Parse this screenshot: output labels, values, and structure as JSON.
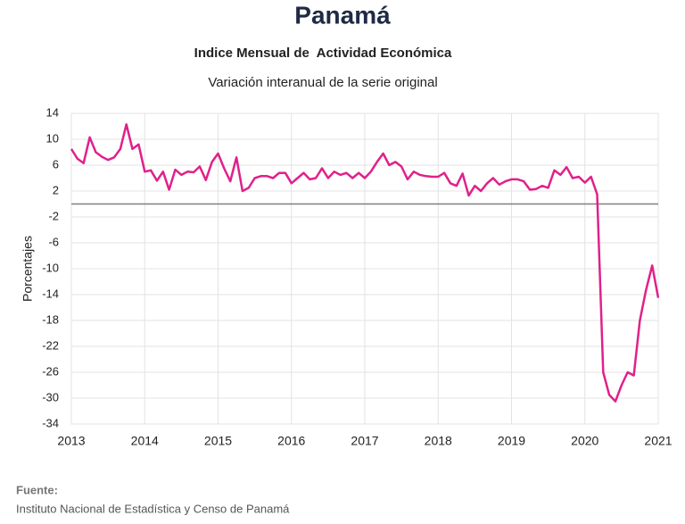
{
  "chart_data": {
    "type": "line",
    "title": "Panamá",
    "subtitle": "Indice Mensual de  Actividad Económica",
    "description": "Variación interanual de la serie original",
    "ylabel": "Porcentajes",
    "source_label": "Fuente:",
    "source": "Instituto Nacional de Estadística y Censo de Panamá",
    "x": [
      2013,
      2013.083,
      2013.167,
      2013.25,
      2013.333,
      2013.417,
      2013.5,
      2013.583,
      2013.667,
      2013.75,
      2013.833,
      2013.917,
      2014,
      2014.083,
      2014.167,
      2014.25,
      2014.333,
      2014.417,
      2014.5,
      2014.583,
      2014.667,
      2014.75,
      2014.833,
      2014.917,
      2015,
      2015.083,
      2015.167,
      2015.25,
      2015.333,
      2015.417,
      2015.5,
      2015.583,
      2015.667,
      2015.75,
      2015.833,
      2015.917,
      2016,
      2016.083,
      2016.167,
      2016.25,
      2016.333,
      2016.417,
      2016.5,
      2016.583,
      2016.667,
      2016.75,
      2016.833,
      2016.917,
      2017,
      2017.083,
      2017.167,
      2017.25,
      2017.333,
      2017.417,
      2017.5,
      2017.583,
      2017.667,
      2017.75,
      2017.833,
      2017.917,
      2018,
      2018.083,
      2018.167,
      2018.25,
      2018.333,
      2018.417,
      2018.5,
      2018.583,
      2018.667,
      2018.75,
      2018.833,
      2018.917,
      2019,
      2019.083,
      2019.167,
      2019.25,
      2019.333,
      2019.417,
      2019.5,
      2019.583,
      2019.667,
      2019.75,
      2019.833,
      2019.917,
      2020,
      2020.083,
      2020.167,
      2020.25,
      2020.333,
      2020.417,
      2020.5,
      2020.583,
      2020.667,
      2020.75,
      2020.833,
      2020.917,
      2021
    ],
    "series": [
      {
        "name": "Variación interanual",
        "color": "#e0218a",
        "values": [
          8.5,
          7,
          6.3,
          10.3,
          8,
          7.3,
          6.8,
          7.2,
          8.5,
          12.3,
          8.5,
          9.2,
          5,
          5.2,
          3.6,
          5,
          2.2,
          5.3,
          4.5,
          5,
          4.9,
          5.8,
          3.7,
          6.5,
          7.8,
          5.5,
          3.5,
          7.2,
          2,
          2.5,
          4,
          4.3,
          4.3,
          4,
          4.8,
          4.8,
          3.2,
          4,
          4.8,
          3.8,
          4,
          5.5,
          4,
          5,
          4.5,
          4.8,
          4,
          4.8,
          4,
          5,
          6.5,
          7.8,
          6,
          6.5,
          5.8,
          3.8,
          5,
          4.5,
          4.3,
          4.2,
          4.2,
          4.8,
          3.2,
          2.8,
          4.7,
          1.3,
          2.8,
          2,
          3.2,
          4,
          3,
          3.5,
          3.8,
          3.8,
          3.5,
          2.2,
          2.3,
          2.8,
          2.5,
          5.2,
          4.5,
          5.7,
          4,
          4.2,
          3.3,
          4.2,
          1.5,
          -26,
          -29.5,
          -30.5,
          -28,
          -26,
          -26.5,
          -18,
          -13.3,
          -9.5,
          -14.5
        ]
      }
    ],
    "xlim": [
      2013,
      2021
    ],
    "xticks": [
      2013,
      2014,
      2015,
      2016,
      2017,
      2018,
      2019,
      2020,
      2021
    ],
    "ylim": [
      -34,
      14
    ],
    "yticks": [
      14,
      10,
      6,
      2,
      -2,
      -6,
      -10,
      -14,
      -18,
      -22,
      -26,
      -30,
      -34
    ],
    "grid": true
  }
}
